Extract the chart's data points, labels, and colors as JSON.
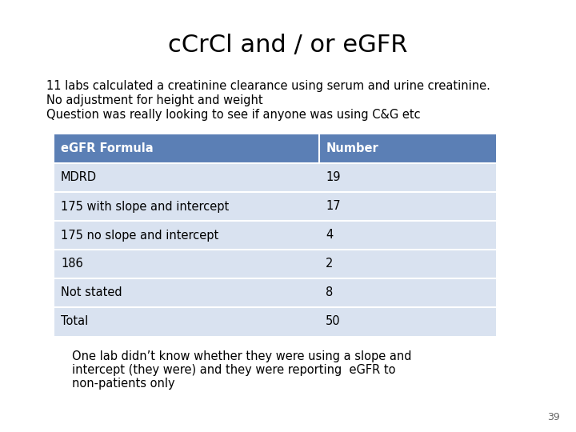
{
  "title": "cCrCl and / or eGFR",
  "subtitle_lines": [
    "11 labs calculated a creatinine clearance using serum and urine creatinine.",
    "No adjustment for height and weight",
    "Question was really looking to see if anyone was using C&G etc"
  ],
  "table_headers": [
    "eGFR Formula",
    "Number"
  ],
  "table_rows": [
    [
      "MDRD",
      "19"
    ],
    [
      "175 with slope and intercept",
      "17"
    ],
    [
      "175 no slope and intercept",
      "4"
    ],
    [
      "186",
      "2"
    ],
    [
      "Not stated",
      "8"
    ],
    [
      "Total",
      "50"
    ]
  ],
  "header_bg": "#5b7fb5",
  "header_text": "#ffffff",
  "row_bg": "#d9e2f0",
  "row_text_color": "#000000",
  "bold_rows": [],
  "footer_lines": [
    "One lab didn’t know whether they were using a slope and",
    "intercept (they were) and they were reporting  eGFR to",
    "non-patients only"
  ],
  "page_number": "39",
  "bg_color": "#ffffff",
  "title_fontsize": 22,
  "subtitle_fontsize": 10.5,
  "table_fontsize": 10.5,
  "footer_fontsize": 10.5
}
